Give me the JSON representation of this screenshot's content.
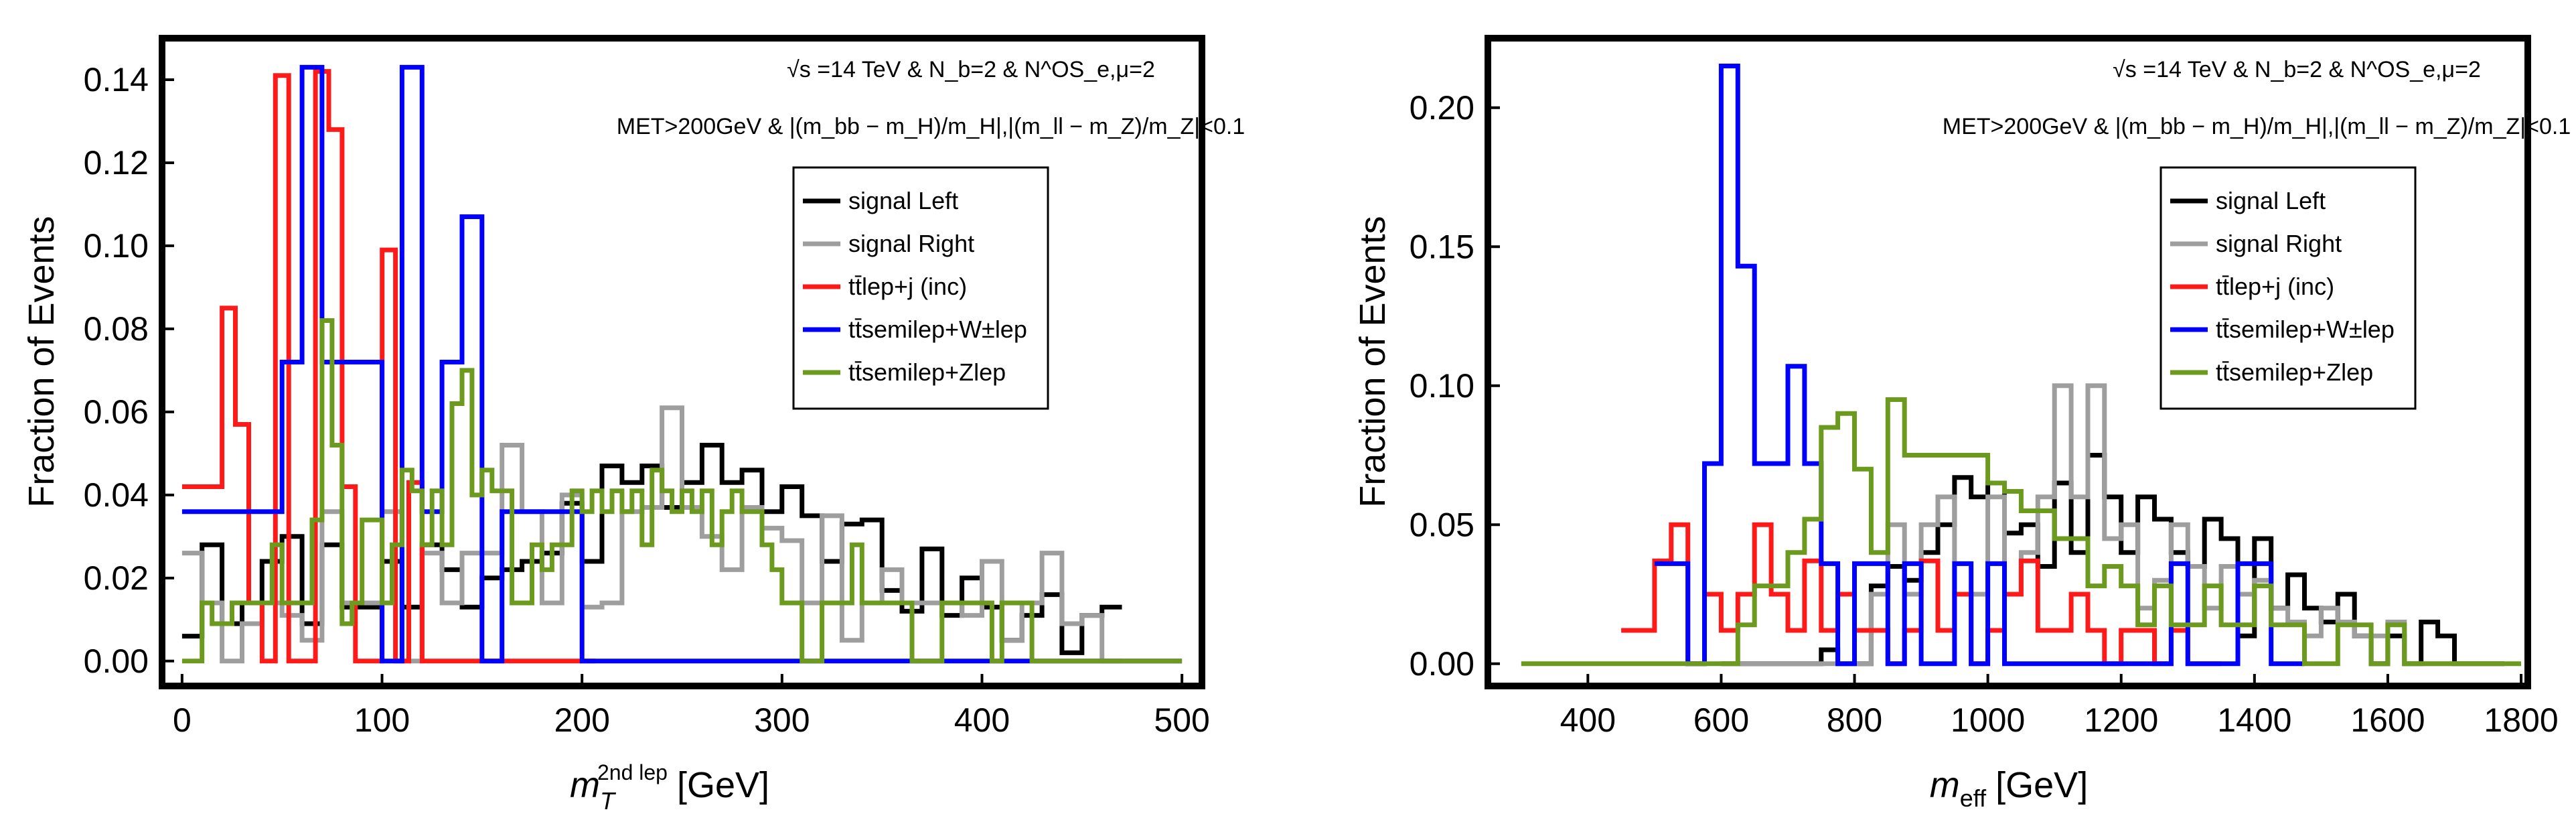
{
  "chart_data": [
    {
      "type": "histogram",
      "ylabel": "Fraction of Events",
      "xlabel_main": "m",
      "xlabel_sub": "T",
      "xlabel_sup": "2nd lep",
      "xlabel_unit": "[GeV]",
      "xlim": [
        -10,
        510
      ],
      "ylim": [
        -0.006,
        0.15
      ],
      "xticks": [
        "0",
        "100",
        "200",
        "300",
        "400",
        "500"
      ],
      "yticks": [
        "0.00",
        "0.02",
        "0.04",
        "0.06",
        "0.08",
        "0.10",
        "0.12",
        "0.14"
      ],
      "annotation_line1": "√s =14 TeV & N_b=2 & N^OS_e,μ=2",
      "annotation_line2": "MET>200GeV & |(m_bb − m_H)/m_H|,|(m_ll − m_Z)/m_Z|<0.1",
      "legend": [
        "signal Left",
        "signal Right",
        "tt̄lep+j (inc)",
        "tt̄semilep+W±lep",
        "tt̄semilep+Zlep"
      ],
      "series": [
        {
          "name": "signal Left",
          "color": "#000000",
          "edges_start": 0,
          "bin_width": 10,
          "values": [
            0.006,
            0.028,
            0.009,
            0.014,
            0.024,
            0.03,
            0.009,
            0.028,
            0.013,
            0.013,
            0.024,
            0.013,
            0.028,
            0.022,
            0.013,
            0.02,
            0.022,
            0.024,
            0.026,
            0.038,
            0.024,
            0.047,
            0.043,
            0.047,
            0.037,
            0.043,
            0.052,
            0.043,
            0.046,
            0.036,
            0.042,
            0.035,
            0.024,
            0.033,
            0.034,
            0.017,
            0.012,
            0.027,
            0.011,
            0.02,
            0.013,
            0.005,
            0.011,
            0.016,
            0.002,
            0.011,
            0.013
          ]
        },
        {
          "name": "signal Right",
          "color": "#9e9e9e",
          "edges_start": 0,
          "bin_width": 10,
          "values": [
            0.026,
            0.014,
            0.0,
            0.009,
            0.014,
            0.011,
            0.005,
            0.036,
            0.014,
            0.014,
            0.036,
            0.0,
            0.026,
            0.014,
            0.026,
            0.026,
            0.052,
            0.036,
            0.014,
            0.04,
            0.013,
            0.014,
            0.036,
            0.037,
            0.061,
            0.037,
            0.03,
            0.022,
            0.037,
            0.032,
            0.029,
            0.014,
            0.035,
            0.005,
            0.014,
            0.022,
            0.014,
            0.014,
            0.014,
            0.011,
            0.024,
            0.005,
            0.014,
            0.026,
            0.009,
            0.011,
            0.0
          ]
        },
        {
          "name": "tt̄lep+j (inc)",
          "color": "#ff1a1a",
          "edges_start": 0,
          "bin_width": 6.67,
          "values": [
            0.042,
            0.042,
            0.042,
            0.085,
            0.057,
            0.014,
            0.0,
            0.141,
            0.0,
            0.0,
            0.142,
            0.128,
            0.042,
            0.0,
            0.0,
            0.099,
            0.0,
            0.043,
            0.0,
            0.0,
            0.0,
            0.0,
            0.0,
            0.0,
            0.0,
            0.0,
            0.0,
            0.0,
            0.0,
            0.0,
            0.0
          ]
        },
        {
          "name": "tt̄semilep+W±lep",
          "color": "#0000ff",
          "edges_start": 0,
          "bin_width": 10,
          "values": [
            0.036,
            0.036,
            0.036,
            0.036,
            0.036,
            0.072,
            0.143,
            0.072,
            0.072,
            0.072,
            0.0,
            0.143,
            0.036,
            0.072,
            0.107,
            0.0,
            0.036,
            0.036,
            0.036,
            0.036,
            0.0,
            0.0,
            0.0,
            0.0,
            0.0,
            0.0,
            0.0,
            0.0,
            0.0,
            0.0,
            0.0,
            0.0,
            0.0,
            0.0,
            0.0,
            0.0,
            0.0,
            0.0,
            0.0,
            0.0,
            0.0,
            0.0,
            0.0,
            0.0,
            0.0,
            0.0,
            0.0,
            0.0,
            0.0,
            0.0
          ]
        },
        {
          "name": "tt̄semilep+Zlep",
          "color": "#6b9a1f",
          "edges_start": 0,
          "bin_width": 5,
          "values": [
            0.0,
            0.0,
            0.014,
            0.009,
            0.009,
            0.014,
            0.014,
            0.014,
            0.014,
            0.028,
            0.014,
            0.014,
            0.014,
            0.034,
            0.082,
            0.052,
            0.009,
            0.014,
            0.034,
            0.034,
            0.014,
            0.028,
            0.046,
            0.041,
            0.028,
            0.041,
            0.028,
            0.062,
            0.07,
            0.04,
            0.046,
            0.041,
            0.041,
            0.014,
            0.014,
            0.028,
            0.022,
            0.028,
            0.028,
            0.041,
            0.036,
            0.041,
            0.036,
            0.041,
            0.036,
            0.041,
            0.028,
            0.046,
            0.041,
            0.036,
            0.041,
            0.036,
            0.041,
            0.028,
            0.036,
            0.041,
            0.036,
            0.036,
            0.028,
            0.022,
            0.014,
            0.014,
            0.0,
            0.0,
            0.014,
            0.014,
            0.014,
            0.028,
            0.014,
            0.014,
            0.014,
            0.014,
            0.014,
            0.0,
            0.0,
            0.0,
            0.014,
            0.014,
            0.014,
            0.014,
            0.014,
            0.0,
            0.014,
            0.014,
            0.014,
            0.0,
            0.0,
            0.0,
            0.0,
            0.0,
            0.0,
            0.0,
            0.0,
            0.0,
            0.0,
            0.0,
            0.0,
            0.0,
            0.0,
            0.0
          ]
        }
      ]
    },
    {
      "type": "histogram",
      "ylabel": "Fraction of Events",
      "xlabel_main": "m",
      "xlabel_sub": "eff",
      "xlabel_unit": "[GeV]",
      "xlim": [
        250,
        1810
      ],
      "ylim": [
        -0.008,
        0.225
      ],
      "xticks": [
        "400",
        "600",
        "800",
        "1000",
        "1200",
        "1400",
        "1600",
        "1800"
      ],
      "yticks": [
        "0.00",
        "0.05",
        "0.10",
        "0.15",
        "0.20"
      ],
      "annotation_line1": "√s =14 TeV & N_b=2 & N^OS_e,μ=2",
      "annotation_line2": "MET>200GeV & |(m_bb − m_H)/m_H|,|(m_ll − m_Z)/m_Z|<0.1",
      "legend": [
        "signal Left",
        "signal Right",
        "tt̄lep+j (inc)",
        "tt̄semilep+W±lep",
        "tt̄semilep+Zlep"
      ],
      "series": [
        {
          "name": "signal Left",
          "color": "#000000",
          "edges_start": 600,
          "bin_width": 25,
          "values": [
            0.0,
            0.0,
            0.0,
            0.0,
            0.0,
            0.0,
            0.005,
            0.0,
            0.0,
            0.028,
            0.035,
            0.03,
            0.04,
            0.05,
            0.067,
            0.06,
            0.065,
            0.047,
            0.05,
            0.035,
            0.065,
            0.04,
            0.075,
            0.06,
            0.04,
            0.06,
            0.052,
            0.04,
            0.035,
            0.052,
            0.045,
            0.01,
            0.045,
            0.02,
            0.032,
            0.02,
            0.015,
            0.025,
            0.01,
            0.0,
            0.01,
            0.0,
            0.015,
            0.01,
            0.0,
            0.0,
            0.0
          ]
        },
        {
          "name": "signal Right",
          "color": "#9e9e9e",
          "edges_start": 600,
          "bin_width": 25,
          "values": [
            0.0,
            0.0,
            0.0,
            0.0,
            0.0,
            0.0,
            0.0,
            0.0,
            0.0,
            0.025,
            0.05,
            0.025,
            0.05,
            0.06,
            0.025,
            0.025,
            0.06,
            0.025,
            0.04,
            0.06,
            0.1,
            0.06,
            0.1,
            0.045,
            0.05,
            0.02,
            0.03,
            0.05,
            0.035,
            0.02,
            0.035,
            0.025,
            0.03,
            0.02,
            0.015,
            0.01,
            0.02,
            0.015,
            0.01,
            0.01,
            0.015,
            0.0,
            0.0,
            0.0,
            0.0,
            0.0,
            0.0
          ]
        },
        {
          "name": "tt̄lep+j (inc)",
          "color": "#ff1a1a",
          "edges_start": 450,
          "bin_width": 25,
          "values": [
            0.012,
            0.012,
            0.037,
            0.05,
            0.0,
            0.025,
            0.012,
            0.025,
            0.05,
            0.025,
            0.012,
            0.037,
            0.012,
            0.025,
            0.012,
            0.012,
            0.0,
            0.012,
            0.037,
            0.012,
            0.025,
            0.0,
            0.012,
            0.025,
            0.037,
            0.012,
            0.012,
            0.025,
            0.012,
            0.0,
            0.012,
            0.012,
            0.0,
            0.012,
            0.0,
            0.0
          ]
        },
        {
          "name": "tt̄semilep+W±lep",
          "color": "#0000ff",
          "edges_start": 500,
          "bin_width": 25,
          "values": [
            0.036,
            0.036,
            0.0,
            0.072,
            0.215,
            0.143,
            0.072,
            0.072,
            0.107,
            0.072,
            0.036,
            0.0,
            0.036,
            0.036,
            0.0,
            0.036,
            0.0,
            0.0,
            0.036,
            0.0,
            0.036,
            0.0,
            0.0,
            0.0,
            0.0,
            0.0,
            0.0,
            0.0,
            0.0,
            0.0,
            0.0,
            0.036,
            0.0,
            0.0,
            0.0,
            0.036,
            0.036,
            0.0,
            0.0
          ]
        },
        {
          "name": "tt̄semilep+Zlep",
          "color": "#6b9a1f",
          "edges_start": 300,
          "bin_width": 25,
          "values": [
            0.0,
            0.0,
            0.0,
            0.0,
            0.0,
            0.0,
            0.0,
            0.0,
            0.0,
            0.0,
            0.0,
            0.0,
            0.0,
            0.014,
            0.028,
            0.028,
            0.04,
            0.052,
            0.085,
            0.09,
            0.07,
            0.04,
            0.095,
            0.075,
            0.075,
            0.075,
            0.075,
            0.075,
            0.065,
            0.062,
            0.055,
            0.055,
            0.045,
            0.045,
            0.028,
            0.035,
            0.028,
            0.014,
            0.028,
            0.014,
            0.014,
            0.028,
            0.014,
            0.014,
            0.028,
            0.014,
            0.014,
            0.0,
            0.0,
            0.014,
            0.014,
            0.0,
            0.014,
            0.0,
            0.0,
            0.0,
            0.0,
            0.0,
            0.0,
            0.0
          ]
        }
      ]
    }
  ]
}
